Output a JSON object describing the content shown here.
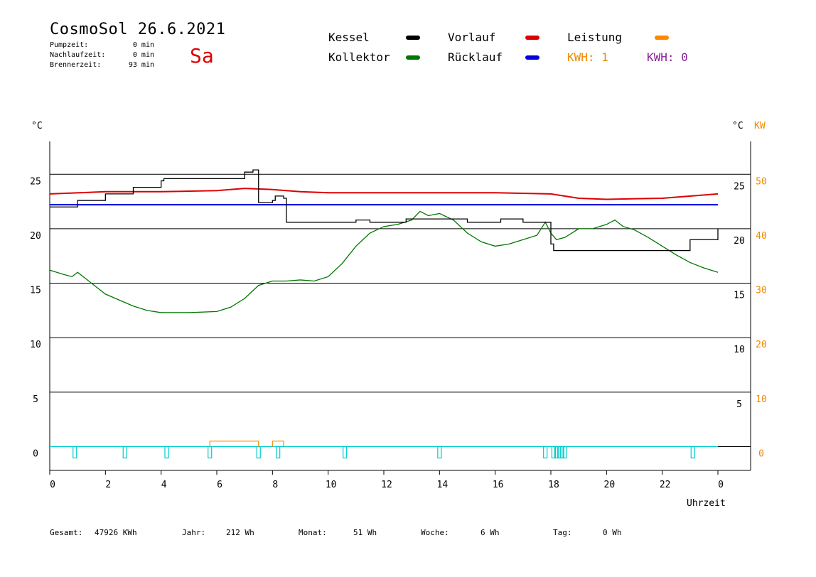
{
  "header": {
    "title": "CosmoSol 26.6.2021",
    "day": "Sa",
    "pumpzeit_label": "Pumpzeit:",
    "pumpzeit_value": "0 min",
    "nachlaufzeit_label": "Nachlaufzeit:",
    "nachlaufzeit_value": "0 min",
    "brennerzeit_label": "Brennerzeit:",
    "brennerzeit_value": "93 min"
  },
  "legend": {
    "kessel": "Kessel",
    "kollektor": "Kollektor",
    "vorlauf": "Vorlauf",
    "ruecklauf": "Rücklauf",
    "leistung": "Leistung",
    "kwh1": "KWH: 1",
    "kwh0": "KWH: 0"
  },
  "colors": {
    "kessel": "#000000",
    "kollektor": "#007700",
    "vorlauf": "#dd0000",
    "ruecklauf": "#0000dd",
    "leistung": "#ff8800",
    "kwh0": "#882299",
    "pump": "#00cccc"
  },
  "axes": {
    "left_unit": "°C",
    "right_unit": "°C",
    "right_unit2": "KW",
    "xlabel": "Uhrzeit"
  },
  "footer": {
    "gesamt_label": "Gesamt:",
    "gesamt_value": "47926 KWh",
    "jahr_label": "Jahr:",
    "jahr_value": "212 Wh",
    "monat_label": "Monat:",
    "monat_value": "51 Wh",
    "woche_label": "Woche:",
    "woche_value": "6 Wh",
    "tag_label": "Tag:",
    "tag_value": "0 Wh"
  },
  "chart_data": {
    "type": "line",
    "xlabel": "Uhrzeit",
    "ylabel": "°C",
    "xlim": [
      0,
      24
    ],
    "ylim": [
      -1.5,
      28
    ],
    "x_ticks": [
      "0",
      "2",
      "4",
      "6",
      "8",
      "10",
      "12",
      "14",
      "16",
      "18",
      "20",
      "22",
      "0"
    ],
    "y_left_ticks": [
      0,
      5,
      10,
      15,
      20,
      25
    ],
    "y_right_inner_ticks": [
      5,
      10,
      15,
      20,
      25
    ],
    "y_right_outer_ticks": [
      0,
      10,
      20,
      30,
      40,
      50
    ],
    "grid": "horizontal",
    "series": [
      {
        "name": "Kessel",
        "color": "#000000",
        "x": [
          0,
          1,
          2,
          3,
          4,
          4.1,
          5,
          6,
          7,
          7.3,
          7.5,
          8,
          8.1,
          8.4,
          8.5,
          9,
          10,
          11,
          11.5,
          12,
          12.8,
          14,
          15,
          16,
          16.2,
          17,
          17.8,
          18,
          18.1,
          19,
          20,
          22,
          23,
          24
        ],
        "y": [
          22,
          22.6,
          23.2,
          23.8,
          24.4,
          24.6,
          24.6,
          24.6,
          25.2,
          25.4,
          22.4,
          22.6,
          23.0,
          22.8,
          20.6,
          20.6,
          20.6,
          20.8,
          20.6,
          20.6,
          20.9,
          20.9,
          20.6,
          20.6,
          20.9,
          20.6,
          20.6,
          18.6,
          18.0,
          18.0,
          18.0,
          18.0,
          19.0,
          20.0
        ]
      },
      {
        "name": "Vorlauf",
        "color": "#dd0000",
        "x": [
          0,
          2,
          4,
          6,
          7,
          8,
          9,
          10,
          12,
          14,
          16,
          18,
          19,
          20,
          22,
          24
        ],
        "y": [
          23.2,
          23.4,
          23.4,
          23.5,
          23.7,
          23.6,
          23.4,
          23.3,
          23.3,
          23.3,
          23.3,
          23.2,
          22.8,
          22.7,
          22.8,
          23.2
        ]
      },
      {
        "name": "Rücklauf",
        "color": "#0000dd",
        "x": [
          0,
          2,
          4,
          6,
          8,
          10,
          12,
          14,
          16,
          18,
          20,
          22,
          24
        ],
        "y": [
          22.2,
          22.2,
          22.2,
          22.2,
          22.2,
          22.2,
          22.2,
          22.2,
          22.2,
          22.2,
          22.2,
          22.2,
          22.2
        ]
      },
      {
        "name": "Kollektor",
        "color": "#007700",
        "x": [
          0,
          0.5,
          0.8,
          1.0,
          1.3,
          2,
          3,
          3.5,
          4,
          4.5,
          5,
          6,
          6.5,
          7,
          7.5,
          8,
          8.5,
          9,
          9.5,
          10,
          10.5,
          11,
          11.5,
          12,
          12.5,
          13,
          13.3,
          13.6,
          14,
          14.5,
          15,
          15.5,
          16,
          16.5,
          17,
          17.5,
          17.8,
          18,
          18.2,
          18.5,
          19,
          19.5,
          20,
          20.3,
          20.6,
          21,
          21.5,
          22,
          22.5,
          23,
          23.5,
          24
        ],
        "y": [
          16.2,
          15.8,
          15.6,
          16.0,
          15.4,
          14.0,
          12.9,
          12.5,
          12.3,
          12.3,
          12.3,
          12.4,
          12.8,
          13.6,
          14.8,
          15.2,
          15.2,
          15.3,
          15.2,
          15.6,
          16.8,
          18.4,
          19.6,
          20.2,
          20.4,
          20.8,
          21.6,
          21.2,
          21.4,
          20.8,
          19.6,
          18.8,
          18.4,
          18.6,
          19.0,
          19.4,
          20.6,
          19.6,
          19.0,
          19.2,
          20.0,
          20.0,
          20.4,
          20.8,
          20.2,
          19.9,
          19.2,
          18.4,
          17.6,
          16.9,
          16.4,
          16.0
        ]
      }
    ],
    "pump_pulses": [
      0.9,
      2.7,
      4.2,
      5.75,
      7.5,
      8.2,
      10.6,
      14.0,
      17.8,
      18.1,
      18.2,
      18.3,
      18.4,
      18.5,
      23.1
    ],
    "leistung_blocks": [
      [
        5.75,
        7.5,
        0.5
      ],
      [
        8.0,
        8.4,
        0.5
      ]
    ]
  }
}
